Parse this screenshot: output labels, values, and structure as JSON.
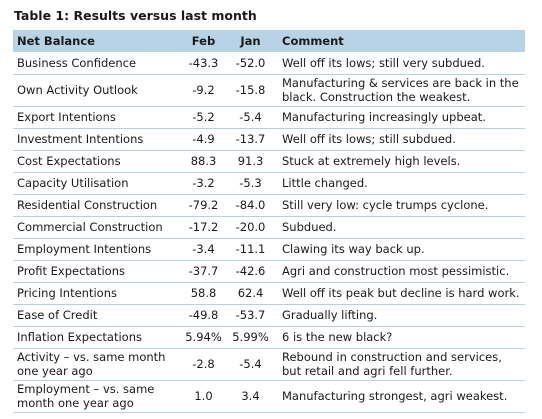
{
  "title": "Table 1: Results versus last month",
  "columns": {
    "label": "Net Balance",
    "feb": "Feb",
    "jan": "Jan",
    "comment": "Comment"
  },
  "rows": [
    {
      "label": "Business Confidence",
      "feb": "-43.3",
      "jan": "-52.0",
      "comment": "Well off its lows; still very subdued."
    },
    {
      "label": "Own Activity Outlook",
      "feb": "-9.2",
      "jan": "-15.8",
      "comment": "Manufacturing & services are back in the black. Construction the weakest."
    },
    {
      "label": "Export Intentions",
      "feb": "-5.2",
      "jan": "-5.4",
      "comment": "Manufacturing increasingly upbeat."
    },
    {
      "label": "Investment Intentions",
      "feb": "-4.9",
      "jan": "-13.7",
      "comment": "Well off its lows; still subdued."
    },
    {
      "label": "Cost Expectations",
      "feb": "88.3",
      "jan": "91.3",
      "comment": "Stuck at extremely high levels."
    },
    {
      "label": "Capacity Utilisation",
      "feb": "-3.2",
      "jan": "-5.3",
      "comment": "Little changed."
    },
    {
      "label": "Residential Construction",
      "feb": "-79.2",
      "jan": "-84.0",
      "comment": "Still very low: cycle trumps cyclone."
    },
    {
      "label": "Commercial Construction",
      "feb": "-17.2",
      "jan": "-20.0",
      "comment": "Subdued."
    },
    {
      "label": "Employment Intentions",
      "feb": "-3.4",
      "jan": "-11.1",
      "comment": "Clawing its way back up."
    },
    {
      "label": "Profit Expectations",
      "feb": "-37.7",
      "jan": "-42.6",
      "comment": "Agri and construction most pessimistic."
    },
    {
      "label": "Pricing Intentions",
      "feb": "58.8",
      "jan": "62.4",
      "comment": "Well off its peak but decline is hard work."
    },
    {
      "label": "Ease of Credit",
      "feb": "-49.8",
      "jan": "-53.7",
      "comment": "Gradually lifting."
    },
    {
      "label": "Inflation Expectations",
      "feb": "5.94%",
      "jan": "5.99%",
      "comment": "6 is the new black?"
    },
    {
      "label": "Activity – vs. same month one year ago",
      "feb": "-2.8",
      "jan": "-5.4",
      "comment": "Rebound in construction and services, but retail and agri fell further."
    },
    {
      "label": "Employment – vs. same month one year ago",
      "feb": "1.0",
      "jan": "3.4",
      "comment": "Manufacturing strongest, agri weakest."
    }
  ]
}
